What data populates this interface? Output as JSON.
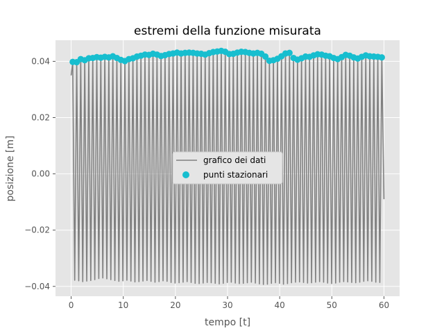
{
  "chart_data": {
    "type": "line",
    "title": "estremi della funzione misurata",
    "xlabel": "tempo [t]",
    "ylabel": "posizione [m]",
    "xlim": [
      -3,
      63
    ],
    "ylim": [
      -0.0435,
      0.0475
    ],
    "xticks": [
      0,
      10,
      20,
      30,
      40,
      50,
      60
    ],
    "xtick_labels": [
      "0",
      "10",
      "20",
      "30",
      "40",
      "50",
      "60"
    ],
    "yticks": [
      -0.04,
      -0.02,
      0.0,
      0.02,
      0.04
    ],
    "ytick_labels": [
      "−0.04",
      "−0.02",
      "0.00",
      "0.02",
      "0.04"
    ],
    "grid": true,
    "legend_position": "center-right",
    "series": [
      {
        "name": "grafico dei dati",
        "color": "#808080",
        "kind": "line",
        "description": "oscillating signal, period ~0.77, amplitude ~0.04, from t=0 to t=60, ending at -0.009",
        "t_start": 0.0,
        "t_end": 60.0,
        "period": 0.77,
        "peak_values": [
          0.0398,
          0.0397,
          0.0408,
          0.0404,
          0.0411,
          0.0412,
          0.0415,
          0.0413,
          0.0416,
          0.0414,
          0.0418,
          0.0412,
          0.0405,
          0.0401,
          0.0408,
          0.0411,
          0.0417,
          0.042,
          0.0424,
          0.0423,
          0.0427,
          0.0424,
          0.0419,
          0.0422,
          0.0426,
          0.0428,
          0.0431,
          0.0428,
          0.043,
          0.0431,
          0.043,
          0.0428,
          0.0427,
          0.0424,
          0.0429,
          0.0433,
          0.0435,
          0.0437,
          0.0434,
          0.0426,
          0.0427,
          0.0431,
          0.0434,
          0.0433,
          0.043,
          0.0428,
          0.043,
          0.0427,
          0.0417,
          0.0402,
          0.0404,
          0.0409,
          0.0418,
          0.0428,
          0.043,
          0.0412,
          0.0406,
          0.0411,
          0.0417,
          0.0416,
          0.0421,
          0.0425,
          0.0424,
          0.042,
          0.0418,
          0.0412,
          0.0408,
          0.0415,
          0.0423,
          0.042,
          0.0414,
          0.041,
          0.0416,
          0.0421,
          0.0418,
          0.0417,
          0.0416,
          0.0414,
          0.0402,
          0.0407,
          0.0425,
          0.0426,
          0.0422,
          0.0416,
          0.0424,
          0.0426,
          0.0425,
          0.0422
        ],
        "trough_values": [
          -0.0378,
          -0.038,
          -0.0383,
          -0.0381,
          -0.0379,
          -0.0376,
          -0.0372,
          -0.037,
          -0.0373,
          -0.0376,
          -0.0379,
          -0.0382,
          -0.038,
          -0.0378,
          -0.0381,
          -0.0384,
          -0.0383,
          -0.0381,
          -0.0379,
          -0.0382,
          -0.0385,
          -0.0383,
          -0.038,
          -0.0382,
          -0.0386,
          -0.0388,
          -0.0387,
          -0.0385,
          -0.0383,
          -0.0386,
          -0.0389,
          -0.039,
          -0.0388,
          -0.0386,
          -0.0387,
          -0.0389,
          -0.0391,
          -0.0389,
          -0.0386,
          -0.0385,
          -0.0388,
          -0.039,
          -0.0389,
          -0.0387,
          -0.0385,
          -0.0388,
          -0.0391,
          -0.0393,
          -0.0392,
          -0.0389,
          -0.0387,
          -0.0389,
          -0.0392,
          -0.039,
          -0.0387,
          -0.0385,
          -0.0384,
          -0.0386,
          -0.0388,
          -0.0387,
          -0.0385,
          -0.0383,
          -0.0385,
          -0.0388,
          -0.039,
          -0.0388,
          -0.0385,
          -0.0383,
          -0.0384,
          -0.0386,
          -0.0387,
          -0.0385,
          -0.0382,
          -0.038,
          -0.0382,
          -0.0385,
          -0.0386,
          -0.0384,
          -0.0381,
          -0.0379,
          -0.0381,
          -0.0384,
          -0.0383,
          -0.038,
          -0.0378,
          -0.038,
          -0.0382,
          -0.0383
        ],
        "end_value": -0.009
      },
      {
        "name": "punti stazionari",
        "color": "#17becf",
        "kind": "scatter",
        "description": "cyan markers at each local maximum of the signal"
      }
    ]
  }
}
